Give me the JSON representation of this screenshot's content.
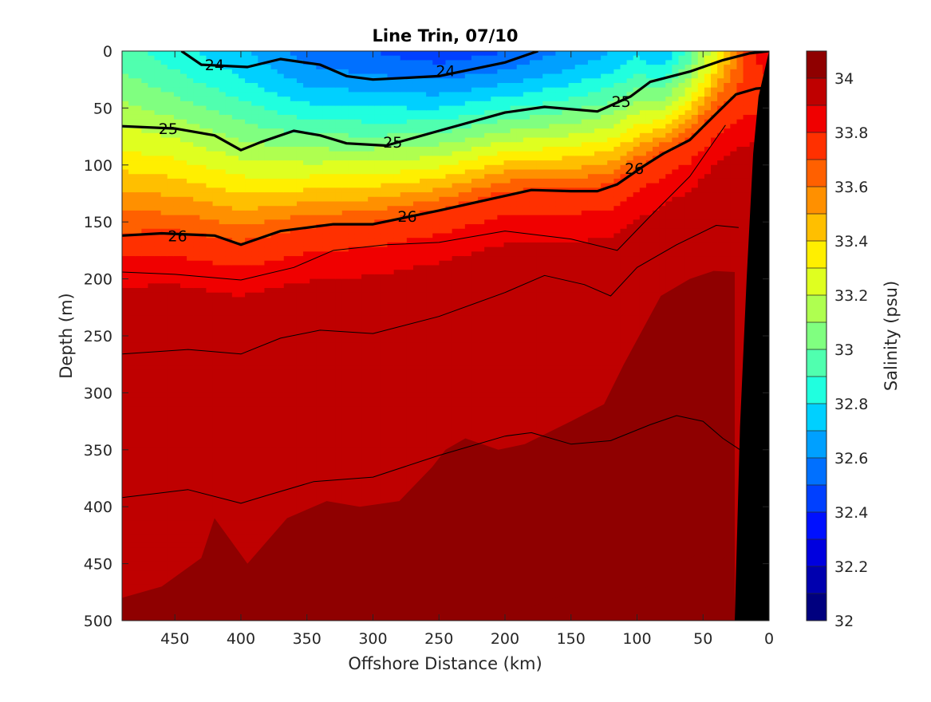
{
  "chart_data": {
    "type": "contour",
    "title": "Line Trin, 07/10",
    "xlabel": "Offshore Distance (km)",
    "ylabel": "Depth (m)",
    "colorbar_label": "Salinity (psu)",
    "xlim": [
      490,
      0
    ],
    "x_reversed": true,
    "ylim": [
      0,
      500
    ],
    "y_reversed": true,
    "x_ticks": [
      450,
      400,
      350,
      300,
      250,
      200,
      150,
      100,
      50,
      0
    ],
    "y_ticks": [
      0,
      50,
      100,
      150,
      200,
      250,
      300,
      350,
      400,
      450,
      500
    ],
    "colorbar_range": [
      32,
      34.1
    ],
    "colorbar_ticks": [
      32,
      32.2,
      32.4,
      32.6,
      32.8,
      33,
      33.2,
      33.4,
      33.6,
      33.8,
      34
    ],
    "colorbar_levels": [
      32.0,
      32.1,
      32.2,
      32.3,
      32.4,
      32.5,
      32.6,
      32.7,
      32.8,
      32.9,
      33.0,
      33.1,
      33.2,
      33.3,
      33.4,
      33.5,
      33.6,
      33.7,
      33.8,
      33.9,
      34.0
    ],
    "colormap": [
      "#00007f",
      "#0000af",
      "#0000df",
      "#0010ff",
      "#0040ff",
      "#0070ff",
      "#00a0ff",
      "#00d0ff",
      "#20ffdf",
      "#50ffaf",
      "#80ff80",
      "#afff50",
      "#dfff20",
      "#ffef00",
      "#ffbf00",
      "#ff9000",
      "#ff6000",
      "#ff3000",
      "#f00000",
      "#bf0000",
      "#8f0000"
    ],
    "grid": false,
    "bathymetry_color": "#000000",
    "salinity_bands": [
      {
        "min_psu": 34.0,
        "depth_top": [
          480,
          470,
          445,
          410,
          450,
          410,
          395,
          400,
          395,
          365,
          350,
          340,
          350,
          345,
          325,
          310,
          275,
          215,
          200,
          193,
          194
        ],
        "x": [
          490,
          460,
          430,
          420,
          395,
          365,
          335,
          310,
          280,
          255,
          245,
          230,
          205,
          185,
          150,
          125,
          110,
          82,
          60,
          42,
          26
        ]
      },
      {
        "min_psu": 34.05,
        "depth_top": [
          500,
          490,
          475,
          475,
          470,
          450,
          440,
          450,
          435
        ],
        "x": [
          205,
          185,
          150,
          120,
          90,
          70,
          50,
          38,
          26
        ]
      }
    ],
    "density_contours": [
      {
        "sigma_theta": 24,
        "x": [
          445,
          430,
          395,
          370,
          340,
          320,
          300,
          250,
          200,
          175
        ],
        "depth": [
          0,
          12,
          14,
          7,
          12,
          22,
          25,
          22,
          10,
          0
        ]
      },
      {
        "sigma_theta": 25,
        "x": [
          490,
          450,
          420,
          400,
          385,
          360,
          340,
          320,
          290,
          250,
          200,
          170,
          130,
          105,
          90,
          60,
          35,
          15,
          0
        ],
        "depth": [
          66,
          68,
          74,
          87,
          80,
          70,
          74,
          81,
          83,
          70,
          54,
          49,
          53,
          40,
          27,
          18,
          8,
          2,
          0
        ]
      },
      {
        "sigma_theta": 26,
        "x": [
          490,
          460,
          420,
          400,
          370,
          330,
          300,
          250,
          180,
          150,
          130,
          115,
          95,
          80,
          60,
          40,
          25,
          10,
          0
        ],
        "depth": [
          162,
          160,
          162,
          170,
          158,
          152,
          152,
          140,
          122,
          123,
          123,
          117,
          101,
          90,
          78,
          55,
          38,
          33,
          32
        ]
      },
      {
        "sigma_theta": 26.3,
        "x": [
          490,
          450,
          400,
          360,
          330,
          290,
          250,
          200,
          150,
          115,
          90,
          60,
          45,
          33
        ],
        "depth": [
          194,
          196,
          201,
          190,
          175,
          170,
          168,
          158,
          165,
          175,
          145,
          110,
          85,
          65
        ]
      },
      {
        "sigma_theta": 26.5,
        "x": [
          490,
          440,
          400,
          370,
          340,
          300,
          250,
          200,
          170,
          140,
          120,
          100,
          70,
          40,
          23
        ],
        "depth": [
          266,
          262,
          266,
          252,
          245,
          248,
          233,
          212,
          197,
          205,
          215,
          190,
          170,
          153,
          155
        ]
      },
      {
        "sigma_theta": 26.7,
        "x": [
          490,
          440,
          400,
          380,
          345,
          300,
          250,
          200,
          180,
          150,
          120,
          90,
          70,
          50,
          35,
          22
        ],
        "depth": [
          392,
          385,
          397,
          390,
          378,
          374,
          355,
          338,
          335,
          345,
          342,
          328,
          320,
          325,
          340,
          350
        ]
      }
    ],
    "contour_labels": [
      {
        "text": "24",
        "x": 420,
        "depth": 12
      },
      {
        "text": "24",
        "x": 245,
        "depth": 17
      },
      {
        "text": "25",
        "x": 455,
        "depth": 68
      },
      {
        "text": "25",
        "x": 285,
        "depth": 80
      },
      {
        "text": "25",
        "x": 112,
        "depth": 44
      },
      {
        "text": "26",
        "x": 448,
        "depth": 162
      },
      {
        "text": "26",
        "x": 274,
        "depth": 145
      },
      {
        "text": "26",
        "x": 102,
        "depth": 103
      }
    ]
  }
}
